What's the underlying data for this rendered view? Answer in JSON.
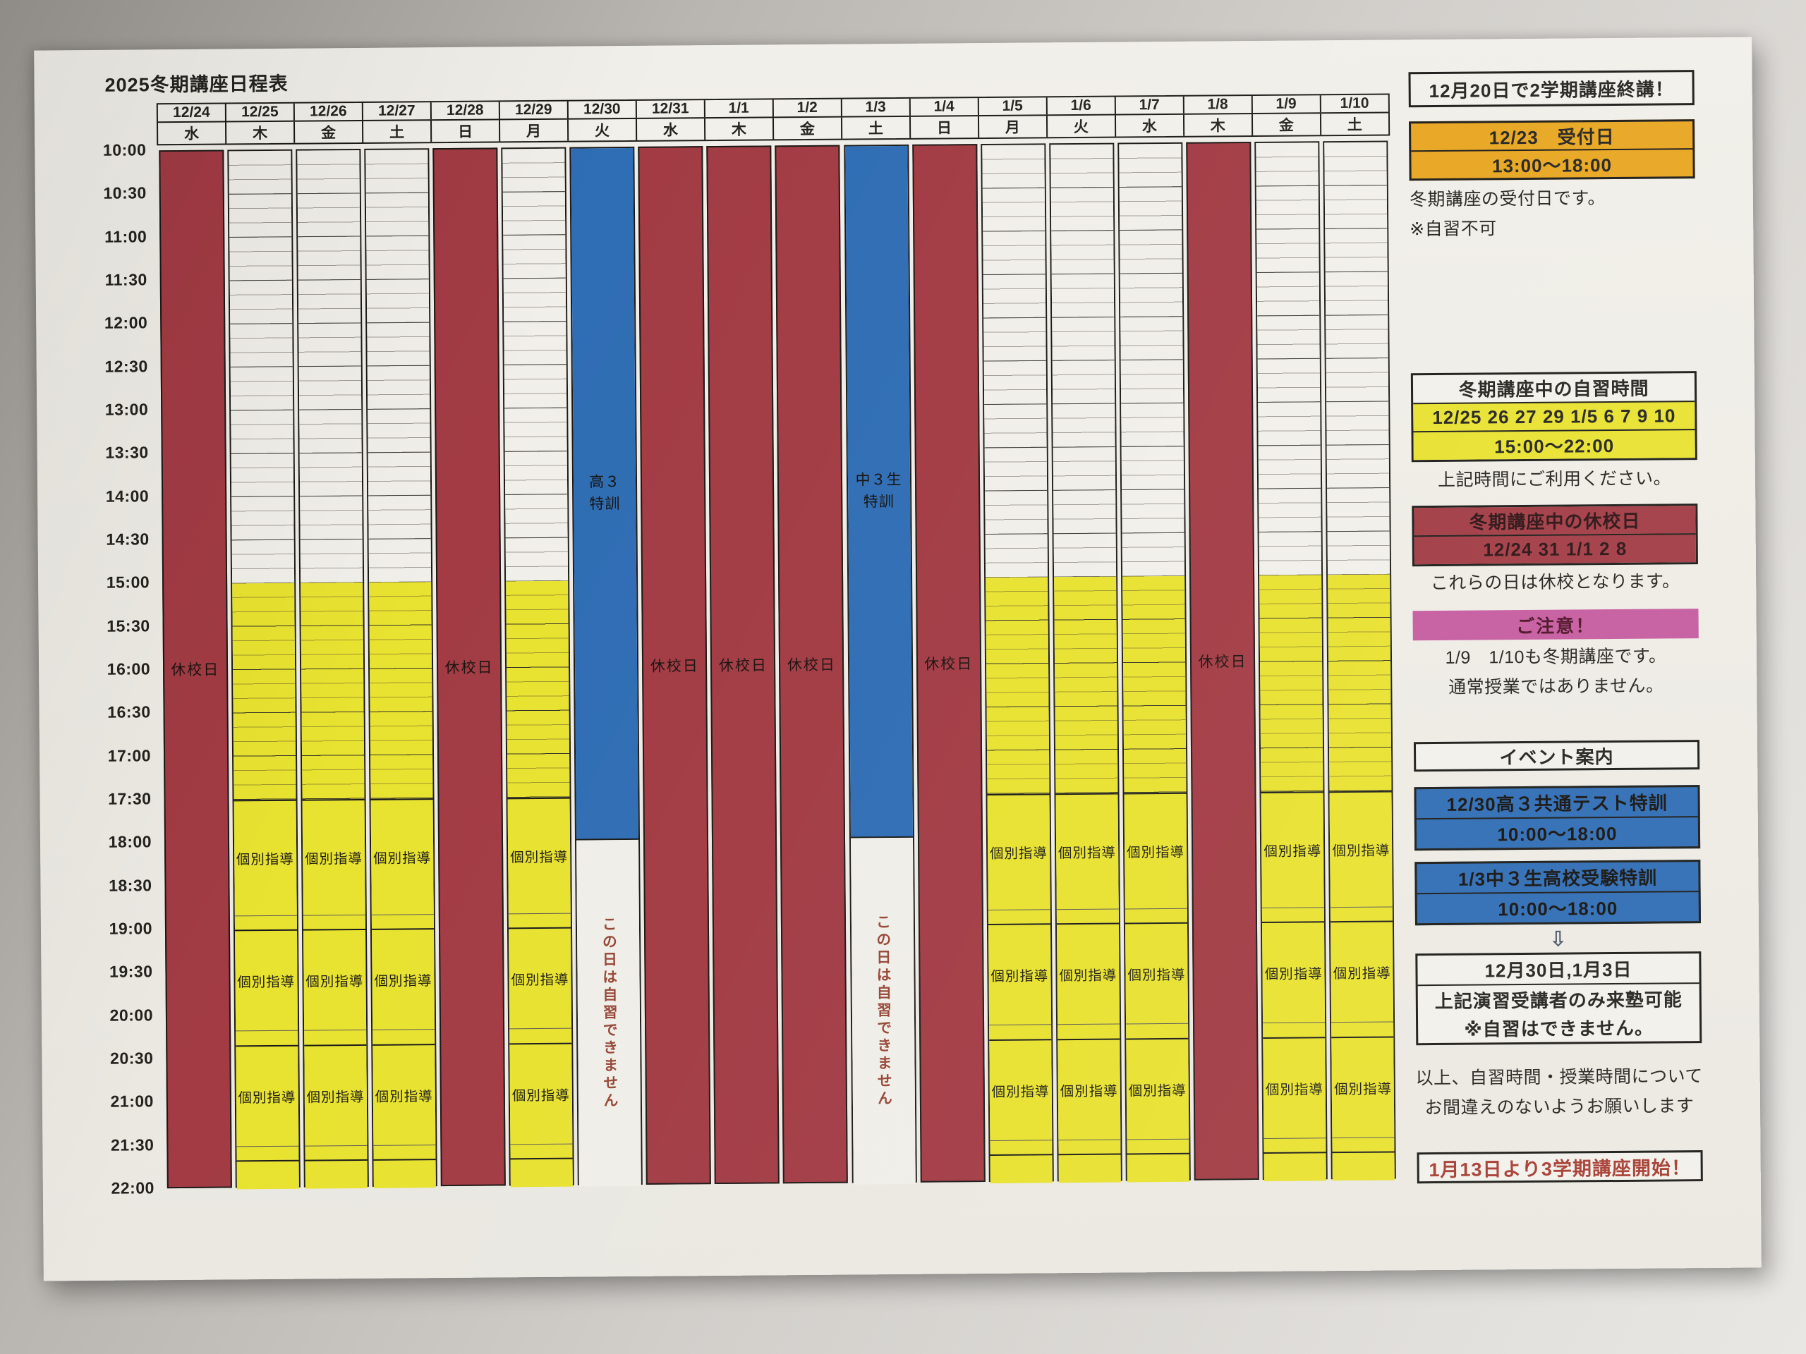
{
  "title": "2025冬期講座日程表",
  "colors": {
    "closed": "#A23B44",
    "study": "#E8E230",
    "event": "#2F6DB4",
    "reception": "#E8A51F",
    "caution": "#C55C9F",
    "border": "#1b1a17",
    "note_text": "#964636",
    "next_term_text": "#A63C32"
  },
  "times": {
    "day_start": "10:00",
    "day_end": "22:00",
    "study_start": "15:00",
    "lesson_zone_start": "17:30",
    "event_end": "18:00",
    "axis_labels": [
      "10:00",
      "10:30",
      "11:00",
      "11:30",
      "12:00",
      "12:30",
      "13:00",
      "13:30",
      "14:00",
      "14:30",
      "15:00",
      "15:30",
      "16:00",
      "16:30",
      "17:00",
      "17:30",
      "18:00",
      "18:30",
      "19:00",
      "19:30",
      "20:00",
      "20:30",
      "21:00",
      "21:30",
      "22:00"
    ],
    "lesson_blocks": [
      {
        "start": "17:30",
        "end": "18:50",
        "divider": "thick",
        "label": true
      },
      {
        "start": "18:50",
        "end": "19:00",
        "divider": "thin",
        "label": false
      },
      {
        "start": "19:00",
        "end": "20:10",
        "divider": "thick",
        "label": true
      },
      {
        "start": "20:10",
        "end": "20:20",
        "divider": "thin",
        "label": false
      },
      {
        "start": "20:20",
        "end": "21:30",
        "divider": "thick",
        "label": true
      },
      {
        "start": "21:30",
        "end": "21:40",
        "divider": "thin",
        "label": false
      },
      {
        "start": "21:40",
        "end": "22:00",
        "divider": "thick",
        "label": false
      }
    ]
  },
  "grid_labels": {
    "closed": "休校日",
    "lesson": "個別指導",
    "event_h3": [
      "高３",
      "特訓"
    ],
    "event_c3": [
      "中３生",
      "特訓"
    ],
    "no_self_study": "この日は自習できません"
  },
  "schedule": {
    "columns": [
      {
        "date": "12/24",
        "weekday": "水",
        "type": "closed"
      },
      {
        "date": "12/25",
        "weekday": "木",
        "type": "regular"
      },
      {
        "date": "12/26",
        "weekday": "金",
        "type": "regular"
      },
      {
        "date": "12/27",
        "weekday": "土",
        "type": "regular"
      },
      {
        "date": "12/28",
        "weekday": "日",
        "type": "closed"
      },
      {
        "date": "12/29",
        "weekday": "月",
        "type": "regular"
      },
      {
        "date": "12/30",
        "weekday": "火",
        "type": "event_h3"
      },
      {
        "date": "12/31",
        "weekday": "水",
        "type": "closed"
      },
      {
        "date": "1/1",
        "weekday": "木",
        "type": "closed"
      },
      {
        "date": "1/2",
        "weekday": "金",
        "type": "closed"
      },
      {
        "date": "1/3",
        "weekday": "土",
        "type": "event_c3"
      },
      {
        "date": "1/4",
        "weekday": "日",
        "type": "closed"
      },
      {
        "date": "1/5",
        "weekday": "月",
        "type": "regular"
      },
      {
        "date": "1/6",
        "weekday": "火",
        "type": "regular"
      },
      {
        "date": "1/7",
        "weekday": "水",
        "type": "regular"
      },
      {
        "date": "1/8",
        "weekday": "木",
        "type": "closed"
      },
      {
        "date": "1/9",
        "weekday": "金",
        "type": "regular"
      },
      {
        "date": "1/10",
        "weekday": "土",
        "type": "regular"
      }
    ]
  },
  "sidebar": {
    "closing_notice": "12月20日で2学期講座終講！",
    "reception": {
      "title": "12/23　受付日",
      "time": "13:00～18:00",
      "note1": "冬期講座の受付日です。",
      "note2": "※自習不可"
    },
    "self_study": {
      "title": "冬期講座中の自習時間",
      "dates": "12/25 26 27 29 1/5 6 7 9 10",
      "time": "15:00～22:00",
      "note": "上記時間にご利用ください。"
    },
    "closed_days": {
      "title": "冬期講座中の休校日",
      "dates": "12/24 31 1/1 2 8",
      "note": "これらの日は休校となります。"
    },
    "caution": {
      "title": "ご注意！",
      "line1": "1/9　1/10も冬期講座です。",
      "line2": "通常授業ではありません。"
    },
    "events": {
      "title": "イベント案内",
      "event1": {
        "title": "12/30高３共通テスト特訓",
        "time": "10:00～18:00"
      },
      "event2": {
        "title": "1/3中３生高校受験特訓",
        "time": "10:00～18:00"
      },
      "arrow": "⇩",
      "restriction": {
        "dates": "12月30日,1月3日",
        "line1": "上記演習受講者のみ来塾可能",
        "line2": "※自習はできません。"
      }
    },
    "summary1": "以上、自習時間・授業時間について",
    "summary2": "お間違えのないようお願いします",
    "next_term": "1月13日より3学期講座開始！"
  }
}
